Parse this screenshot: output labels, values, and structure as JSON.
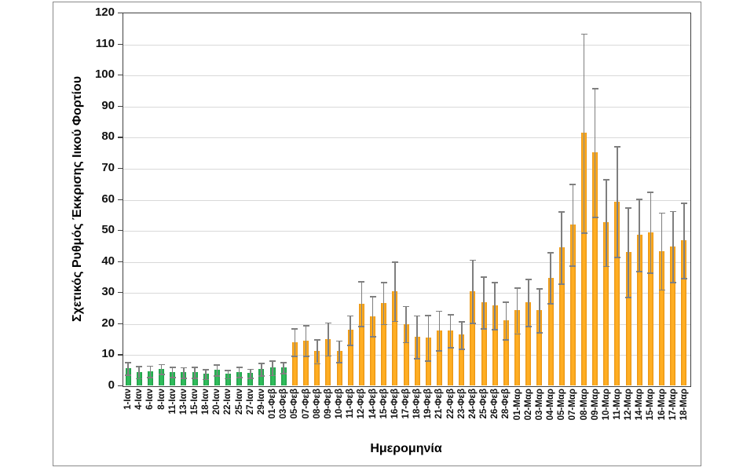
{
  "chart_data": {
    "type": "bar",
    "title": "",
    "xlabel": "Ημερομηνία",
    "ylabel": "Σχετικός Ρυθμός Έκκρισης Ιικού Φορτίου",
    "ylim": [
      0,
      120
    ],
    "ytick_step": 10,
    "yticks": [
      0,
      10,
      20,
      30,
      40,
      50,
      60,
      70,
      80,
      90,
      100,
      110,
      120
    ],
    "grid": true,
    "legend_position": "none",
    "error_bars": true,
    "green_count": 15,
    "categories": [
      "1-Ιαν",
      "4-Ιαν",
      "6-Ιαν",
      "8-Ιαν",
      "11-Ιαν",
      "13-Ιαν",
      "15-Ιαν",
      "18-Ιαν",
      "20-Ιαν",
      "22-Ιαν",
      "25-Ιαν",
      "27-Ιαν",
      "29-Ιαν",
      "01-Φεβ",
      "03-Φεβ",
      "05-Φεβ",
      "07-Φεβ",
      "08-Φεβ",
      "09-Φεβ",
      "10-Φεβ",
      "11-Φεβ",
      "12-Φεβ",
      "14-Φεβ",
      "15-Φεβ",
      "16-Φεβ",
      "17-Φεβ",
      "18-Φεβ",
      "19-Φεβ",
      "21-Φεβ",
      "22-Φεβ",
      "23-Φεβ",
      "24-Φεβ",
      "25-Φεβ",
      "26-Φεβ",
      "28-Φεβ",
      "01-Μαρ",
      "02-Μαρ",
      "03-Μαρ",
      "04-Μαρ",
      "05-Μαρ",
      "07-Μαρ",
      "08-Μαρ",
      "09-Μαρ",
      "10-Μαρ",
      "11-Μαρ",
      "12-Μαρ",
      "14-Μαρ",
      "15-Μαρ",
      "16-Μαρ",
      "17-Μαρ",
      "18-Μαρ"
    ],
    "values": [
      5.6,
      4.3,
      4.6,
      5.3,
      4.4,
      4.2,
      4.3,
      3.7,
      5.0,
      3.7,
      4.4,
      4.0,
      5.3,
      5.7,
      5.8,
      14.0,
      14.5,
      11.0,
      15.0,
      11.0,
      17.9,
      26.4,
      22.3,
      26.6,
      30.3,
      19.8,
      15.7,
      15.4,
      17.7,
      17.7,
      16.3,
      30.3,
      26.8,
      25.8,
      21.0,
      24.2,
      26.8,
      24.2,
      34.7,
      44.5,
      51.8,
      81.3,
      75.0,
      52.5,
      59.2,
      43.0,
      48.5,
      49.3,
      43.3,
      44.8,
      46.7
    ],
    "errors": [
      2.0,
      1.9,
      1.8,
      1.6,
      1.7,
      1.7,
      1.7,
      1.6,
      1.7,
      1.3,
      1.7,
      1.4,
      2.1,
      2.3,
      1.7,
      4.5,
      5.0,
      3.8,
      5.3,
      3.5,
      4.7,
      7.2,
      6.5,
      6.8,
      9.5,
      5.8,
      6.9,
      7.4,
      6.4,
      5.3,
      4.4,
      10.2,
      8.3,
      7.6,
      6.1,
      7.4,
      7.6,
      7.1,
      8.2,
      11.6,
      13.1,
      32.0,
      20.7,
      14.0,
      17.8,
      14.4,
      11.7,
      13.0,
      12.4,
      11.4,
      12.1
    ],
    "colors": {
      "bar_green": "#22A34B",
      "bar_orange": "#F7A11C",
      "error_bar": "#7F7F7F",
      "gridline": "#D9D9D9",
      "axis": "#404040",
      "frame_border": "#898989",
      "text": "#111111"
    }
  }
}
